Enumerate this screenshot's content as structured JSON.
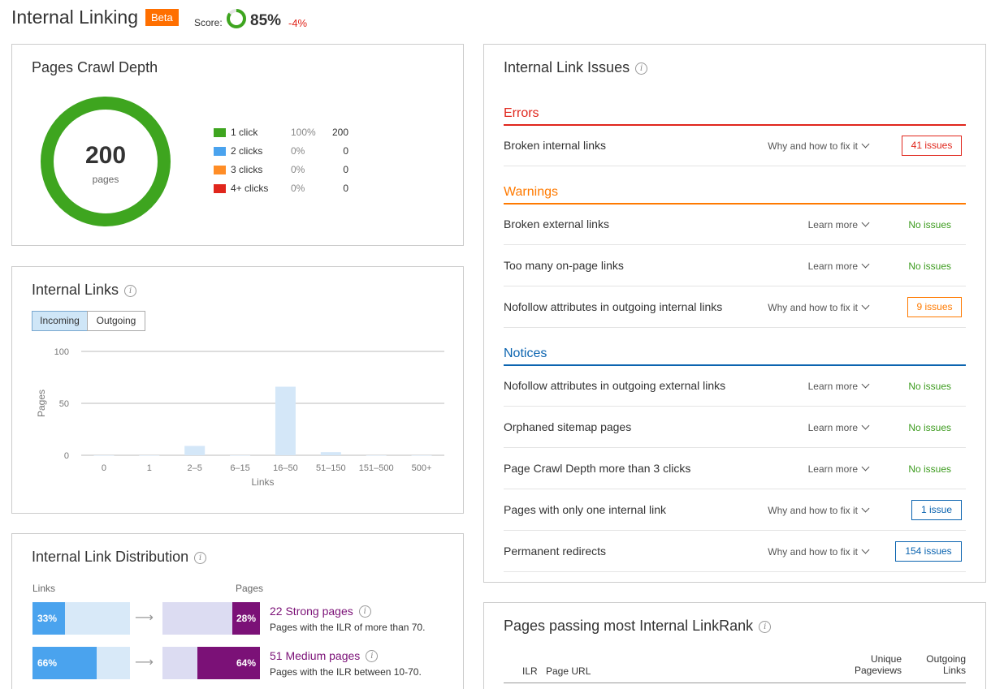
{
  "header": {
    "title": "Internal Linking",
    "beta": "Beta",
    "score_label": "Score:",
    "score_value": "85%",
    "score_delta": "-4%",
    "score_fraction": 0.85
  },
  "crawl_depth": {
    "title": "Pages Crawl Depth",
    "total": "200",
    "total_label": "pages",
    "legend": [
      {
        "label": "1 click",
        "pct": "100%",
        "count": "200",
        "color": "#3ea51f"
      },
      {
        "label": "2 clicks",
        "pct": "0%",
        "count": "0",
        "color": "#4aa3ee"
      },
      {
        "label": "3 clicks",
        "pct": "0%",
        "count": "0",
        "color": "#ff8d26"
      },
      {
        "label": "4+ clicks",
        "pct": "0%",
        "count": "0",
        "color": "#e0261c"
      }
    ]
  },
  "internal_links": {
    "title": "Internal Links",
    "tabs": {
      "incoming": "Incoming",
      "outgoing": "Outgoing"
    },
    "chart_data": {
      "type": "bar",
      "categories": [
        "0",
        "1",
        "2–5",
        "6–15",
        "16–50",
        "51–150",
        "151–500",
        "500+"
      ],
      "values": [
        0,
        0,
        9,
        0,
        66,
        3,
        0,
        0
      ],
      "ylim": [
        0,
        100
      ],
      "yticks": [
        "100",
        "50",
        "0"
      ],
      "ytick_values": [
        100,
        50,
        0
      ],
      "xlabel": "Links",
      "ylabel": "Pages",
      "bar_color": "#d4e7f8",
      "grid": true
    }
  },
  "distribution": {
    "title": "Internal Link Distribution",
    "links_hdr": "Links",
    "pages_hdr": "Pages",
    "rows": [
      {
        "links_pct": "33%",
        "links_value": 0.33,
        "pages_pct": "28%",
        "pages_value": 0.28,
        "name": "22 Strong pages",
        "desc": "Pages with the ILR of more than 70."
      },
      {
        "links_pct": "66%",
        "links_value": 0.66,
        "pages_pct": "64%",
        "pages_value": 0.64,
        "name": "51 Medium pages",
        "desc": "Pages with the ILR between 10-70."
      }
    ]
  },
  "issues": {
    "title": "Internal Link Issues",
    "errors": {
      "label": "Errors",
      "color": "#e0261c",
      "rows": [
        {
          "name": "Broken internal links",
          "link": "Why and how to fix it",
          "status": "41 issues"
        }
      ]
    },
    "warnings": {
      "label": "Warnings",
      "color": "#ff7a00",
      "rows": [
        {
          "name": "Broken external links",
          "link": "Learn more",
          "status": "No issues"
        },
        {
          "name": "Too many on-page links",
          "link": "Learn more",
          "status": "No issues"
        },
        {
          "name": "Nofollow attributes in outgoing internal links",
          "link": "Why and how to fix it",
          "status": "9 issues"
        }
      ]
    },
    "notices": {
      "label": "Notices",
      "color": "#0b64b0",
      "rows": [
        {
          "name": "Nofollow attributes in outgoing external links",
          "link": "Learn more",
          "status": "No issues"
        },
        {
          "name": "Orphaned sitemap pages",
          "link": "Learn more",
          "status": "No issues"
        },
        {
          "name": "Page Crawl Depth more than 3 clicks",
          "link": "Learn more",
          "status": "No issues"
        },
        {
          "name": "Pages with only one internal link",
          "link": "Why and how to fix it",
          "status": "1 issue"
        },
        {
          "name": "Permanent redirects",
          "link": "Why and how to fix it",
          "status": "154 issues"
        }
      ]
    }
  },
  "linkrank": {
    "title": "Pages passing most Internal LinkRank",
    "columns": {
      "ilr": "ILR",
      "url": "Page URL",
      "pageviews_1": "Unique",
      "pageviews_2": "Pageviews",
      "outgoing_1": "Outgoing",
      "outgoing_2": "Links"
    }
  }
}
